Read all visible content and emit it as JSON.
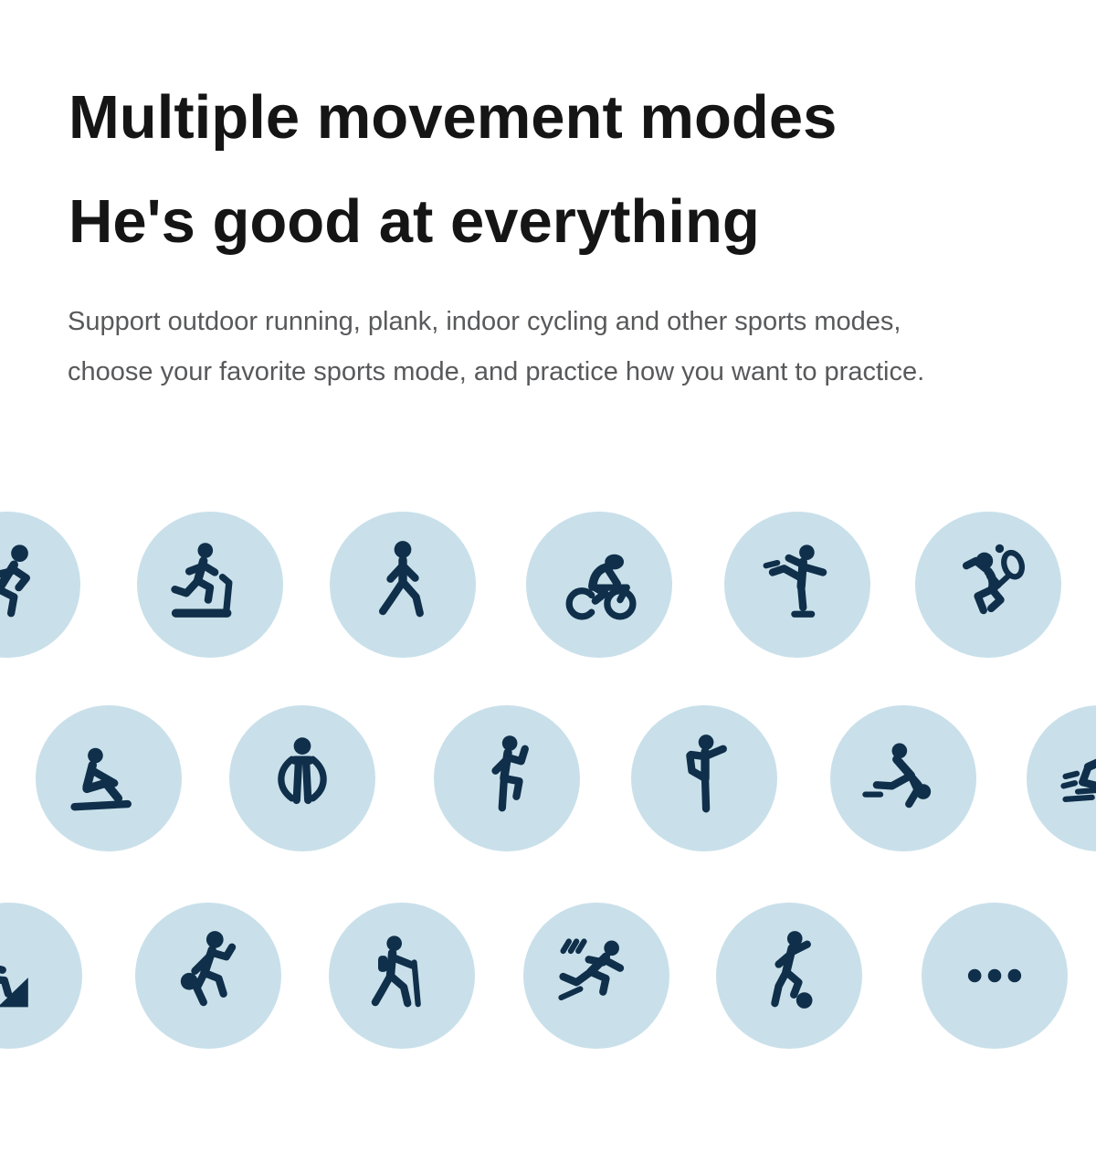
{
  "title": {
    "line1": "Multiple movement modes",
    "line2": "He's good at everything"
  },
  "subtitle": {
    "line1": "Support outdoor running, plank, indoor cycling and other sports modes,",
    "line2": "choose your favorite sports mode, and practice how you want to practice."
  },
  "colors": {
    "page_bg": "#ffffff",
    "circle_bg": "#c9e0ea",
    "icon_color": "#0f2f4a",
    "title_color": "#151515",
    "subtitle_color": "#58595b"
  },
  "sport_rows": [
    {
      "items": [
        {
          "icon": "outdoor-running-icon",
          "mode": "outdoor running"
        },
        {
          "icon": "treadmill-running-icon",
          "mode": "treadmill running"
        },
        {
          "icon": "walking-icon",
          "mode": "walking"
        },
        {
          "icon": "indoor-cycling-icon",
          "mode": "indoor cycling"
        },
        {
          "icon": "figure-skating-icon",
          "mode": "skating"
        },
        {
          "icon": "badminton-icon",
          "mode": "badminton"
        }
      ]
    },
    {
      "items": [
        {
          "icon": "sit-ups-icon",
          "mode": "sit-ups"
        },
        {
          "icon": "free-training-icon",
          "mode": "free training"
        },
        {
          "icon": "high-knees-icon",
          "mode": "high knees"
        },
        {
          "icon": "yoga-icon",
          "mode": "yoga"
        },
        {
          "icon": "bowling-icon",
          "mode": "bowling"
        },
        {
          "icon": "speed-skating-icon",
          "mode": "speed skating"
        }
      ]
    },
    {
      "items": [
        {
          "icon": "mountaineering-icon",
          "mode": "mountaineering"
        },
        {
          "icon": "basketball-icon",
          "mode": "basketball"
        },
        {
          "icon": "hiking-icon",
          "mode": "hiking"
        },
        {
          "icon": "sprint-icon",
          "mode": "sprint"
        },
        {
          "icon": "soccer-icon",
          "mode": "soccer"
        },
        {
          "icon": "more-icon",
          "mode": "more"
        }
      ]
    }
  ]
}
